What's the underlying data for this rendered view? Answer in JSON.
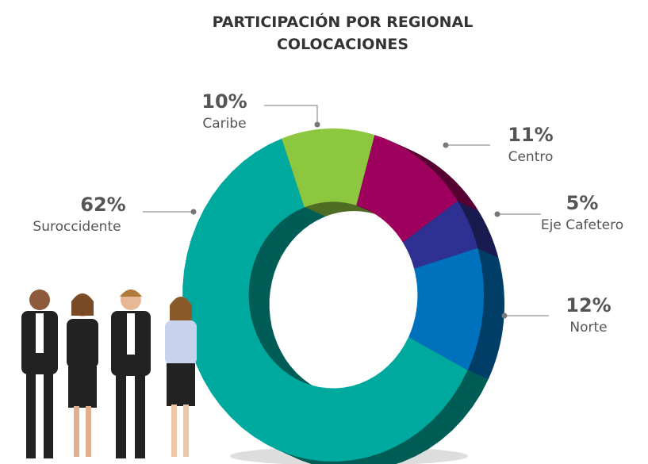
{
  "chart_data": {
    "type": "donut",
    "title": "PARTICIPACIÓN POR REGIONAL",
    "subtitle": "COLOCACIONES",
    "categories": [
      "Caribe",
      "Centro",
      "Eje Cafetero",
      "Norte",
      "Suroccidente"
    ],
    "values": [
      10,
      11,
      5,
      12,
      62
    ],
    "value_labels": [
      "10%",
      "11%",
      "5%",
      "12%",
      "62%"
    ],
    "colors": [
      "#8dc63f",
      "#9e005d",
      "#2e3192",
      "#0071bc",
      "#00a99d"
    ]
  }
}
